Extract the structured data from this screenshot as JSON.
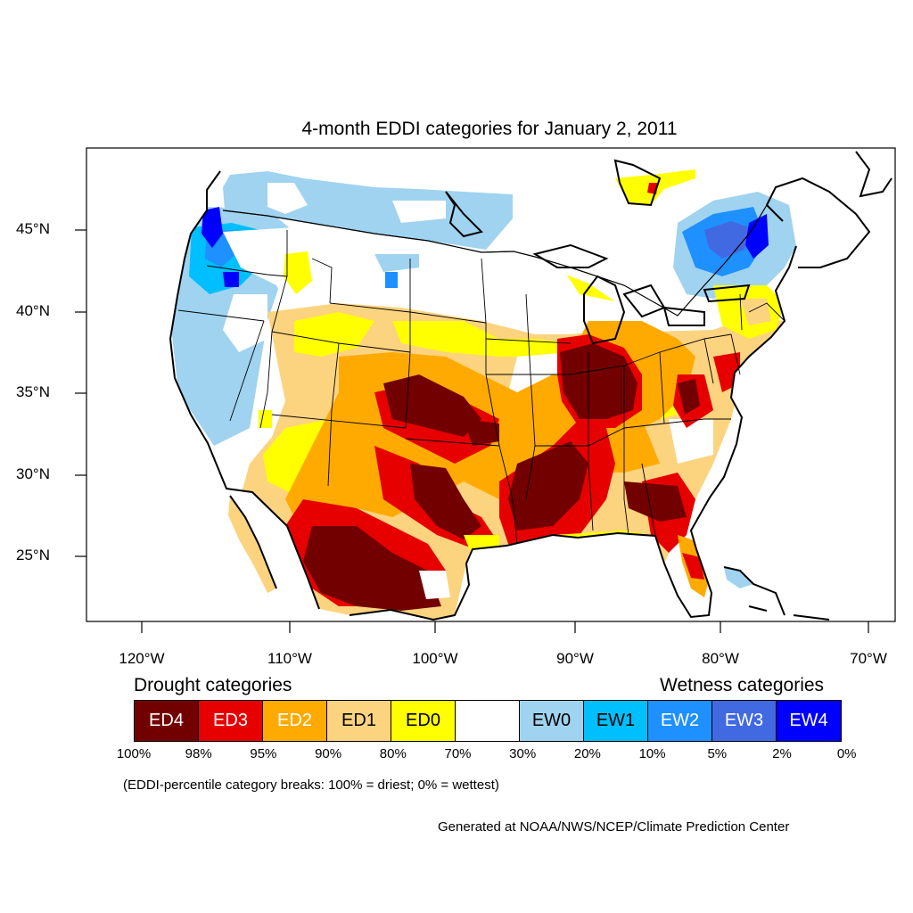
{
  "title": "4-month EDDI categories for January 2, 2011",
  "y_axis_labels": [
    "45°N",
    "40°N",
    "35°N",
    "30°N",
    "25°N"
  ],
  "x_axis_labels": [
    "120°W",
    "110°W",
    "100°W",
    "90°W",
    "80°W",
    "70°W"
  ],
  "legend": {
    "drought_heading": "Drought categories",
    "wetness_heading": "Wetness categories",
    "categories": [
      {
        "label": "ED4",
        "color": "#730000",
        "text_color": "#ffffff"
      },
      {
        "label": "ED3",
        "color": "#e60000",
        "text_color": "#ffffff"
      },
      {
        "label": "ED2",
        "color": "#ffaa00",
        "text_color": "#ffffff"
      },
      {
        "label": "ED1",
        "color": "#fcd37f",
        "text_color": "#000000"
      },
      {
        "label": "ED0",
        "color": "#ffff00",
        "text_color": "#000000"
      },
      {
        "label": "",
        "color": "#ffffff",
        "text_color": "#000000"
      },
      {
        "label": "EW0",
        "color": "#9fd3f0",
        "text_color": "#000000"
      },
      {
        "label": "EW1",
        "color": "#00bfff",
        "text_color": "#000000"
      },
      {
        "label": "EW2",
        "color": "#1e90ff",
        "text_color": "#ffffff"
      },
      {
        "label": "EW3",
        "color": "#4169e1",
        "text_color": "#ffffff"
      },
      {
        "label": "EW4",
        "color": "#0000ff",
        "text_color": "#ffffff"
      }
    ],
    "percent_breaks": [
      "100%",
      "98%",
      "95%",
      "90%",
      "80%",
      "70%",
      "30%",
      "20%",
      "10%",
      "5%",
      "2%",
      "0%"
    ]
  },
  "note": "(EDDI-percentile category breaks: 100% = driest; 0% = wettest)",
  "credit": "Generated at NOAA/NWS/NCEP/Climate Prediction Center"
}
